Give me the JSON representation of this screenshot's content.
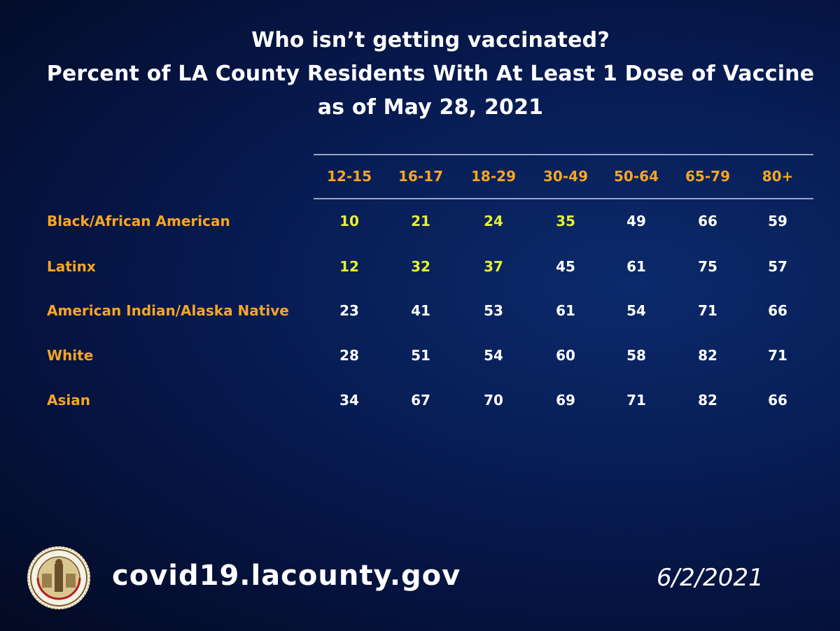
{
  "slide": {
    "title_lines": [
      "Who isn’t getting vaccinated?",
      "Percent of LA County Residents With At Least 1 Dose of Vaccine",
      "as of May 28, 2021"
    ],
    "footer_url": "covid19.lacounty.gov",
    "footer_date": "6/2/2021",
    "seal_icon": "la-county-seal-icon",
    "colors": {
      "header": "#f5a623",
      "highlight": "#e8f032",
      "text": "#ffffff",
      "background": "#061545"
    }
  },
  "chart_data": {
    "type": "table",
    "title": "Who isn’t getting vaccinated? Percent of LA County Residents With At Least 1 Dose of Vaccine as of May 28, 2021",
    "columns": [
      "12-15",
      "16-17",
      "18-29",
      "30-49",
      "50-64",
      "65-79",
      "80+"
    ],
    "rows": [
      {
        "label": "Black/African American",
        "values": [
          10,
          21,
          24,
          35,
          49,
          66,
          59
        ],
        "highlighted": [
          true,
          true,
          true,
          true,
          false,
          false,
          false
        ]
      },
      {
        "label": "Latinx",
        "values": [
          12,
          32,
          37,
          45,
          61,
          75,
          57
        ],
        "highlighted": [
          true,
          true,
          true,
          false,
          false,
          false,
          false
        ]
      },
      {
        "label": "American Indian/Alaska Native",
        "values": [
          23,
          41,
          53,
          61,
          54,
          71,
          66
        ],
        "highlighted": [
          false,
          false,
          false,
          false,
          false,
          false,
          false
        ]
      },
      {
        "label": "White",
        "values": [
          28,
          51,
          54,
          60,
          58,
          82,
          71
        ],
        "highlighted": [
          false,
          false,
          false,
          false,
          false,
          false,
          false
        ]
      },
      {
        "label": "Asian",
        "values": [
          34,
          67,
          70,
          69,
          71,
          82,
          66
        ],
        "highlighted": [
          false,
          false,
          false,
          false,
          false,
          false,
          false
        ]
      }
    ]
  }
}
